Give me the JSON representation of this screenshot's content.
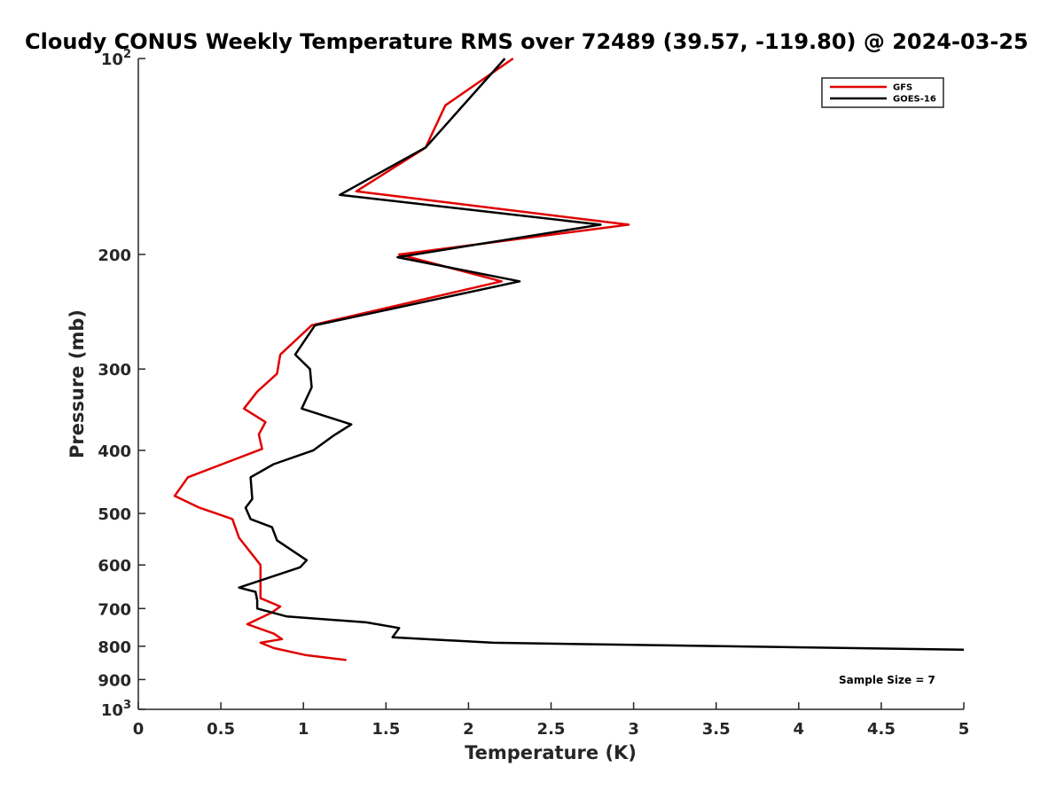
{
  "chart_data": {
    "type": "line",
    "title": "Cloudy CONUS Weekly Temperature RMS over 72489 (39.57, -119.80) @ 2024-03-25",
    "xlabel": "Temperature (K)",
    "ylabel": "Pressure (mb)",
    "xlim": [
      0,
      5
    ],
    "ylim": [
      100,
      1000
    ],
    "yscale": "log",
    "y_reversed": true,
    "grid": false,
    "legend_position": "top-right",
    "xticks": [
      0,
      0.5,
      1,
      1.5,
      2,
      2.5,
      3,
      3.5,
      4,
      4.5,
      5
    ],
    "xtick_labels": [
      "0",
      "0.5",
      "1",
      "1.5",
      "2",
      "2.5",
      "3",
      "3.5",
      "4",
      "4.5",
      "5"
    ],
    "yticks": [
      100,
      200,
      300,
      400,
      500,
      600,
      700,
      800,
      900,
      1000
    ],
    "ytick_labels": [
      {
        "base": "10",
        "sup": "2"
      },
      {
        "base": "200",
        "sup": ""
      },
      {
        "base": "300",
        "sup": ""
      },
      {
        "base": "400",
        "sup": ""
      },
      {
        "base": "500",
        "sup": ""
      },
      {
        "base": "600",
        "sup": ""
      },
      {
        "base": "700",
        "sup": ""
      },
      {
        "base": "800",
        "sup": ""
      },
      {
        "base": "900",
        "sup": ""
      },
      {
        "base": "10",
        "sup": "3"
      }
    ],
    "annotation": "Sample Size = 7",
    "series": [
      {
        "name": "GFS",
        "color": "#e00000",
        "x": [
          2.27,
          1.86,
          1.74,
          1.32,
          2.97,
          1.58,
          2.2,
          1.05,
          0.86,
          0.84,
          0.72,
          0.64,
          0.77,
          0.73,
          0.75,
          0.3,
          0.22,
          0.37,
          0.57,
          0.61,
          0.74,
          0.74,
          0.74,
          0.86,
          0.81,
          0.66,
          0.82,
          0.87,
          0.74,
          0.82,
          1.01,
          1.26
        ],
        "y": [
          100,
          118,
          137,
          160,
          180,
          200,
          220,
          257,
          285,
          305,
          325,
          345,
          362,
          378,
          398,
          440,
          470,
          490,
          510,
          545,
          600,
          640,
          675,
          695,
          710,
          740,
          765,
          780,
          790,
          805,
          825,
          840
        ]
      },
      {
        "name": "GOES-16",
        "color": "#000000",
        "x": [
          2.22,
          1.74,
          1.22,
          2.8,
          1.57,
          2.31,
          1.07,
          0.95,
          1.04,
          1.05,
          0.99,
          1.29,
          1.18,
          1.06,
          0.82,
          0.68,
          0.69,
          0.65,
          0.68,
          0.81,
          0.84,
          1.02,
          0.98,
          0.61,
          0.71,
          0.72,
          0.72,
          0.9,
          1.38,
          1.58,
          1.54,
          2.15,
          5.0
        ],
        "y": [
          100,
          137,
          162,
          180,
          202,
          220,
          257,
          285,
          300,
          320,
          345,
          365,
          380,
          400,
          420,
          440,
          475,
          490,
          510,
          525,
          550,
          590,
          605,
          650,
          660,
          680,
          700,
          720,
          735,
          750,
          775,
          790,
          810
        ]
      }
    ]
  }
}
